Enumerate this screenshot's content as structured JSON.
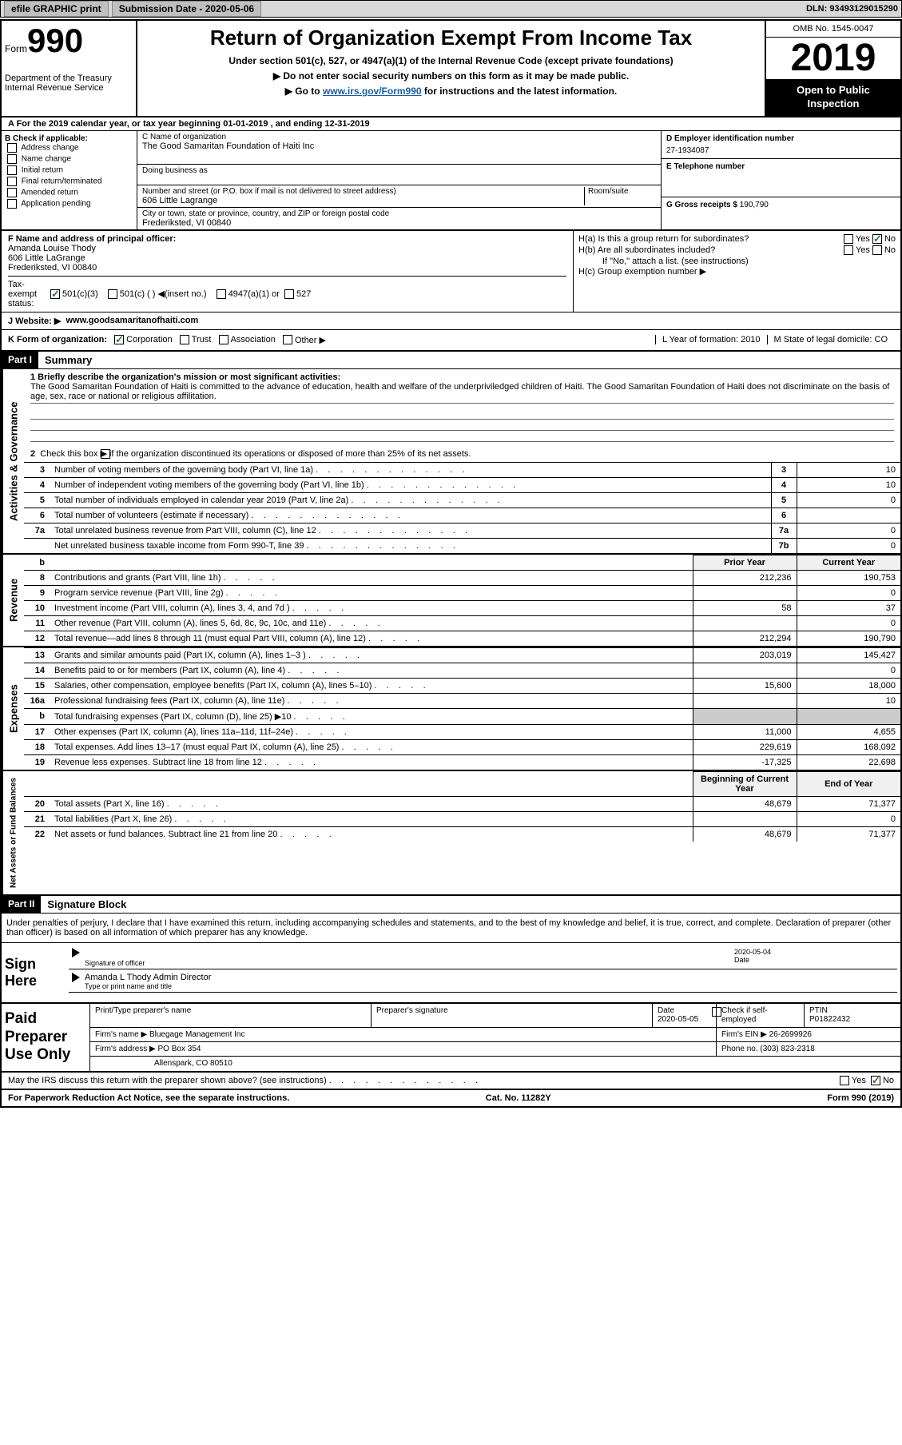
{
  "topbar": {
    "efile": "efile GRAPHIC print",
    "subdate_label": "Submission Date - ",
    "subdate": "2020-05-06",
    "dln_label": "DLN: ",
    "dln": "93493129015290"
  },
  "header": {
    "form_word": "Form",
    "form_num": "990",
    "dept": "Department of the Treasury\nInternal Revenue Service",
    "title": "Return of Organization Exempt From Income Tax",
    "sub1": "Under section 501(c), 527, or 4947(a)(1) of the Internal Revenue Code (except private foundations)",
    "sub2": "▶ Do not enter social security numbers on this form as it may be made public.",
    "sub3a": "▶ Go to ",
    "sub3_link": "www.irs.gov/Form990",
    "sub3b": " for instructions and the latest information.",
    "omb": "OMB No. 1545-0047",
    "year": "2019",
    "inspect": "Open to Public Inspection"
  },
  "rowA": "A For the 2019 calendar year, or tax year beginning 01-01-2019    , and ending 12-31-2019",
  "boxB": {
    "title": "B Check if applicable:",
    "items": [
      "Address change",
      "Name change",
      "Initial return",
      "Final return/terminated",
      "Amended return",
      "Application pending"
    ]
  },
  "boxC": {
    "name_lbl": "C Name of organization",
    "name": "The Good Samaritan Foundation of Haiti Inc",
    "dba_lbl": "Doing business as",
    "dba": "",
    "addr_lbl": "Number and street (or P.O. box if mail is not delivered to street address)",
    "room_lbl": "Room/suite",
    "addr": "606 Little Lagrange",
    "city_lbl": "City or town, state or province, country, and ZIP or foreign postal code",
    "city": "Frederiksted, VI  00840"
  },
  "boxD": {
    "lbl": "D Employer identification number",
    "val": "27-1934087"
  },
  "boxE": {
    "lbl": "E Telephone number",
    "val": ""
  },
  "boxG": {
    "lbl": "G Gross receipts $ ",
    "val": "190,790"
  },
  "boxF": {
    "lbl": "F  Name and address of principal officer:",
    "name": "Amanda Louise Thody",
    "addr1": "606 Little LaGrange",
    "addr2": "Frederiksted, VI  00840"
  },
  "boxH": {
    "a": "H(a)  Is this a group return for subordinates?",
    "b": "H(b)  Are all subordinates included?",
    "bnote": "If \"No,\" attach a list. (see instructions)",
    "c": "H(c)  Group exemption number ▶"
  },
  "rowI": {
    "lbl": "Tax-exempt status:",
    "o1": "501(c)(3)",
    "o2": "501(c) (  ) ◀(insert no.)",
    "o3": "4947(a)(1) or",
    "o4": "527"
  },
  "rowJ": {
    "lbl": "J    Website: ▶",
    "val": "www.goodsamaritanofhaiti.com"
  },
  "rowK": {
    "lbl": "K Form of organization:",
    "o1": "Corporation",
    "o2": "Trust",
    "o3": "Association",
    "o4": "Other ▶",
    "L": "L Year of formation: 2010",
    "M": "M State of legal domicile: CO"
  },
  "part1": {
    "hdr": "Part I",
    "title": "Summary",
    "brief_lbl": "1  Briefly describe the organization's mission or most significant activities:",
    "brief": "The Good Samaritan Foundation of Haiti is committed to the advance of education, health and welfare of the underpriviledged children of Haiti. The Good Samaritan Foundation of Haiti does not discriminate on the basis of age, sex, race or national or religious affilitation.",
    "line2": "Check this box ▶        if the organization discontinued its operations or disposed of more than 25% of its net assets.",
    "vtab_ag": "Activities & Governance",
    "vtab_rev": "Revenue",
    "vtab_exp": "Expenses",
    "vtab_na": "Net Assets or Fund Balances",
    "rows_ag": [
      {
        "n": "3",
        "t": "Number of voting members of the governing body (Part VI, line 1a)",
        "b": "3",
        "v": "10"
      },
      {
        "n": "4",
        "t": "Number of independent voting members of the governing body (Part VI, line 1b)",
        "b": "4",
        "v": "10"
      },
      {
        "n": "5",
        "t": "Total number of individuals employed in calendar year 2019 (Part V, line 2a)",
        "b": "5",
        "v": "0"
      },
      {
        "n": "6",
        "t": "Total number of volunteers (estimate if necessary)",
        "b": "6",
        "v": ""
      },
      {
        "n": "7a",
        "t": "Total unrelated business revenue from Part VIII, column (C), line 12",
        "b": "7a",
        "v": "0"
      },
      {
        "n": "",
        "t": "Net unrelated business taxable income from Form 990-T, line 39",
        "b": "7b",
        "v": "0"
      }
    ],
    "py": "Prior Year",
    "cy": "Current Year",
    "rows_rev": [
      {
        "n": "8",
        "t": "Contributions and grants (Part VIII, line 1h)",
        "py": "212,236",
        "cy": "190,753"
      },
      {
        "n": "9",
        "t": "Program service revenue (Part VIII, line 2g)",
        "py": "",
        "cy": "0"
      },
      {
        "n": "10",
        "t": "Investment income (Part VIII, column (A), lines 3, 4, and 7d )",
        "py": "58",
        "cy": "37"
      },
      {
        "n": "11",
        "t": "Other revenue (Part VIII, column (A), lines 5, 6d, 8c, 9c, 10c, and 11e)",
        "py": "",
        "cy": "0"
      },
      {
        "n": "12",
        "t": "Total revenue—add lines 8 through 11 (must equal Part VIII, column (A), line 12)",
        "py": "212,294",
        "cy": "190,790"
      }
    ],
    "rows_exp": [
      {
        "n": "13",
        "t": "Grants and similar amounts paid (Part IX, column (A), lines 1–3 )",
        "py": "203,019",
        "cy": "145,427"
      },
      {
        "n": "14",
        "t": "Benefits paid to or for members (Part IX, column (A), line 4)",
        "py": "",
        "cy": "0"
      },
      {
        "n": "15",
        "t": "Salaries, other compensation, employee benefits (Part IX, column (A), lines 5–10)",
        "py": "15,600",
        "cy": "18,000"
      },
      {
        "n": "16a",
        "t": "Professional fundraising fees (Part IX, column (A), line 11e)",
        "py": "",
        "cy": "10"
      },
      {
        "n": "b",
        "t": "Total fundraising expenses (Part IX, column (D), line 25) ▶10",
        "py": "grey",
        "cy": "grey"
      },
      {
        "n": "17",
        "t": "Other expenses (Part IX, column (A), lines 11a–11d, 11f–24e)",
        "py": "11,000",
        "cy": "4,655"
      },
      {
        "n": "18",
        "t": "Total expenses. Add lines 13–17 (must equal Part IX, column (A), line 25)",
        "py": "229,619",
        "cy": "168,092"
      },
      {
        "n": "19",
        "t": "Revenue less expenses. Subtract line 18 from line 12",
        "py": "-17,325",
        "cy": "22,698"
      }
    ],
    "bcy": "Beginning of Current Year",
    "eoy": "End of Year",
    "rows_na": [
      {
        "n": "20",
        "t": "Total assets (Part X, line 16)",
        "py": "48,679",
        "cy": "71,377"
      },
      {
        "n": "21",
        "t": "Total liabilities (Part X, line 26)",
        "py": "",
        "cy": "0"
      },
      {
        "n": "22",
        "t": "Net assets or fund balances. Subtract line 21 from line 20",
        "py": "48,679",
        "cy": "71,377"
      }
    ]
  },
  "part2": {
    "hdr": "Part II",
    "title": "Signature Block",
    "decl": "Under penalties of perjury, I declare that I have examined this return, including accompanying schedules and statements, and to the best of my knowledge and belief, it is true, correct, and complete. Declaration of preparer (other than officer) is based on all information of which preparer has any knowledge.",
    "sign_here": "Sign Here",
    "sig_officer": "Signature of officer",
    "sig_date": "2020-05-04",
    "date_lbl": "Date",
    "sig_name": "Amanda L Thody  Admin Director",
    "sig_name_lbl": "Type or print name and title",
    "paid": "Paid Preparer Use Only",
    "prep_name_lbl": "Print/Type preparer's name",
    "prep_sig_lbl": "Preparer's signature",
    "prep_date_lbl": "Date",
    "prep_date": "2020-05-05",
    "prep_self": "Check        if self-employed",
    "ptin_lbl": "PTIN",
    "ptin": "P01822432",
    "firm_name_lbl": "Firm's name    ▶",
    "firm_name": "Bluegage Management Inc",
    "firm_ein_lbl": "Firm's EIN ▶",
    "firm_ein": "26-2699926",
    "firm_addr_lbl": "Firm's address ▶",
    "firm_addr1": "PO Box 354",
    "firm_addr2": "Allenspark, CO  80510",
    "phone_lbl": "Phone no. ",
    "phone": "(303) 823-2318",
    "discuss": "May the IRS discuss this return with the preparer shown above? (see instructions)"
  },
  "footer": {
    "left": "For Paperwork Reduction Act Notice, see the separate instructions.",
    "mid": "Cat. No. 11282Y",
    "right": "Form 990 (2019)"
  }
}
